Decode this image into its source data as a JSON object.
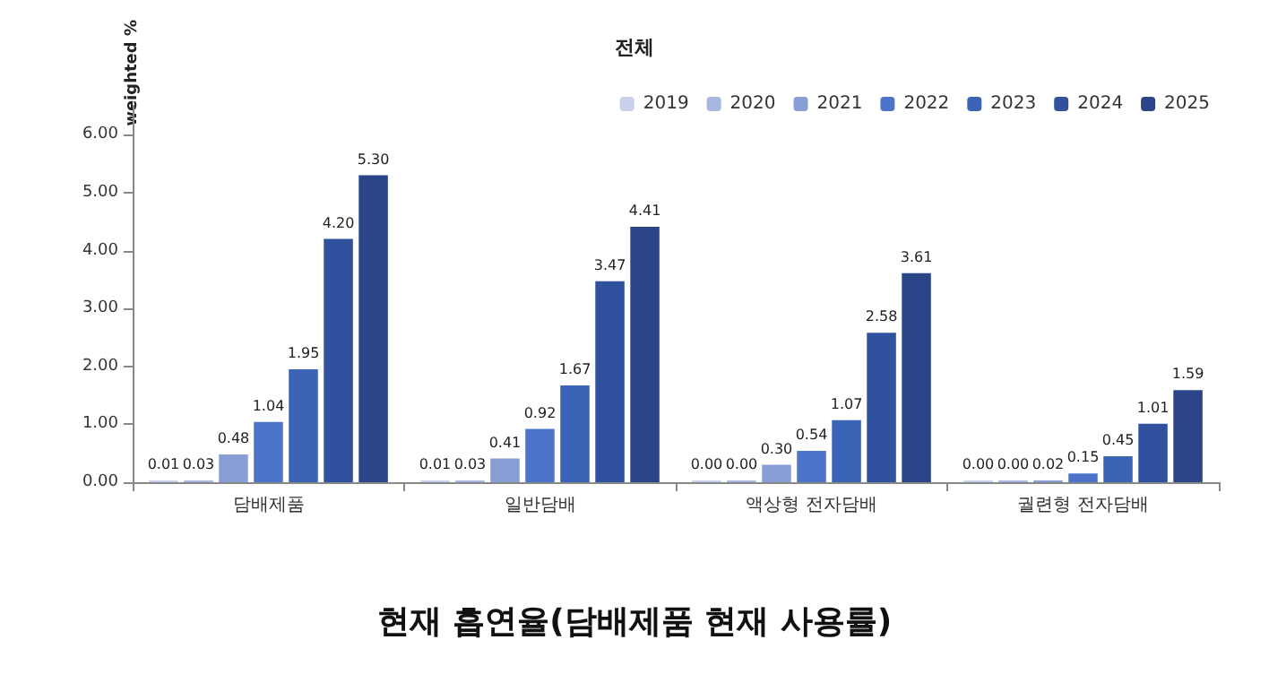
{
  "chart_data": {
    "type": "bar",
    "title": "전체",
    "ylabel": "weighted %",
    "annotations": [
      "현재 흡연율(담배제품 현재 사용률)"
    ],
    "categories": [
      "담배제품",
      "일반담배",
      "액상형 전자담배",
      "궐련형 전자담배"
    ],
    "series": [
      {
        "name": "2019",
        "color": "#c9d1ea",
        "values": [
          0.01,
          0.01,
          0,
          0
        ],
        "value_labels": [
          "0.01",
          "0.01",
          "0.00",
          "0.00"
        ]
      },
      {
        "name": "2020",
        "color": "#a9b7e0",
        "values": [
          0.03,
          0.03,
          0,
          0
        ],
        "value_labels": [
          "0.03",
          "0.03",
          "0.00",
          "0.00"
        ]
      },
      {
        "name": "2021",
        "color": "#8a9ed6",
        "values": [
          0.48,
          0.41,
          0.3,
          0.02
        ],
        "value_labels": [
          "0.48",
          "0.41",
          "0.30",
          "0.02"
        ]
      },
      {
        "name": "2022",
        "color": "#4d74c9",
        "values": [
          1.04,
          0.92,
          0.54,
          0.15
        ],
        "value_labels": [
          "1.04",
          "0.92",
          "0.54",
          "0.15"
        ]
      },
      {
        "name": "2023",
        "color": "#3c64b6",
        "values": [
          1.95,
          1.67,
          1.07,
          0.45
        ],
        "value_labels": [
          "1.95",
          "1.67",
          "1.07",
          "0.45"
        ]
      },
      {
        "name": "2024",
        "color": "#30529e",
        "values": [
          4.2,
          3.47,
          2.58,
          1.01
        ],
        "value_labels": [
          "4.20",
          "3.47",
          "2.58",
          "1.01"
        ]
      },
      {
        "name": "2025",
        "color": "#2a4588",
        "values": [
          5.3,
          4.41,
          3.61,
          1.59
        ],
        "value_labels": [
          "5.30",
          "4.41",
          "3.61",
          "1.59"
        ]
      }
    ],
    "ylim": [
      0,
      6.5
    ],
    "yticks": [
      {
        "value": 0,
        "label": "0.00"
      },
      {
        "value": 1,
        "label": "1.00"
      },
      {
        "value": 2,
        "label": "2.00"
      },
      {
        "value": 3,
        "label": "3.00"
      },
      {
        "value": 4,
        "label": "4.00"
      },
      {
        "value": 5,
        "label": "5.00"
      },
      {
        "value": 6,
        "label": "6.00"
      }
    ],
    "grid": false,
    "legend": "top right"
  }
}
